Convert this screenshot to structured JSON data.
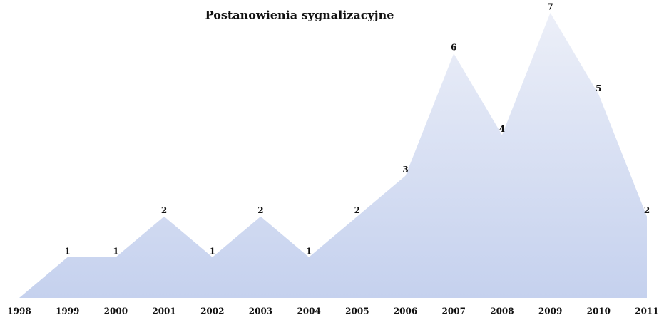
{
  "chart_data": {
    "type": "area",
    "title": "Postanowienia sygnalizacyjne",
    "categories": [
      "1998",
      "1999",
      "2000",
      "2001",
      "2002",
      "2003",
      "2004",
      "2005",
      "2006",
      "2007",
      "2008",
      "2009",
      "2010",
      "2011"
    ],
    "values": [
      0,
      1,
      1,
      2,
      1,
      2,
      1,
      2,
      3,
      6,
      4,
      7,
      5,
      2
    ],
    "ylim": [
      0,
      7
    ],
    "color": "#c5d1ee"
  }
}
